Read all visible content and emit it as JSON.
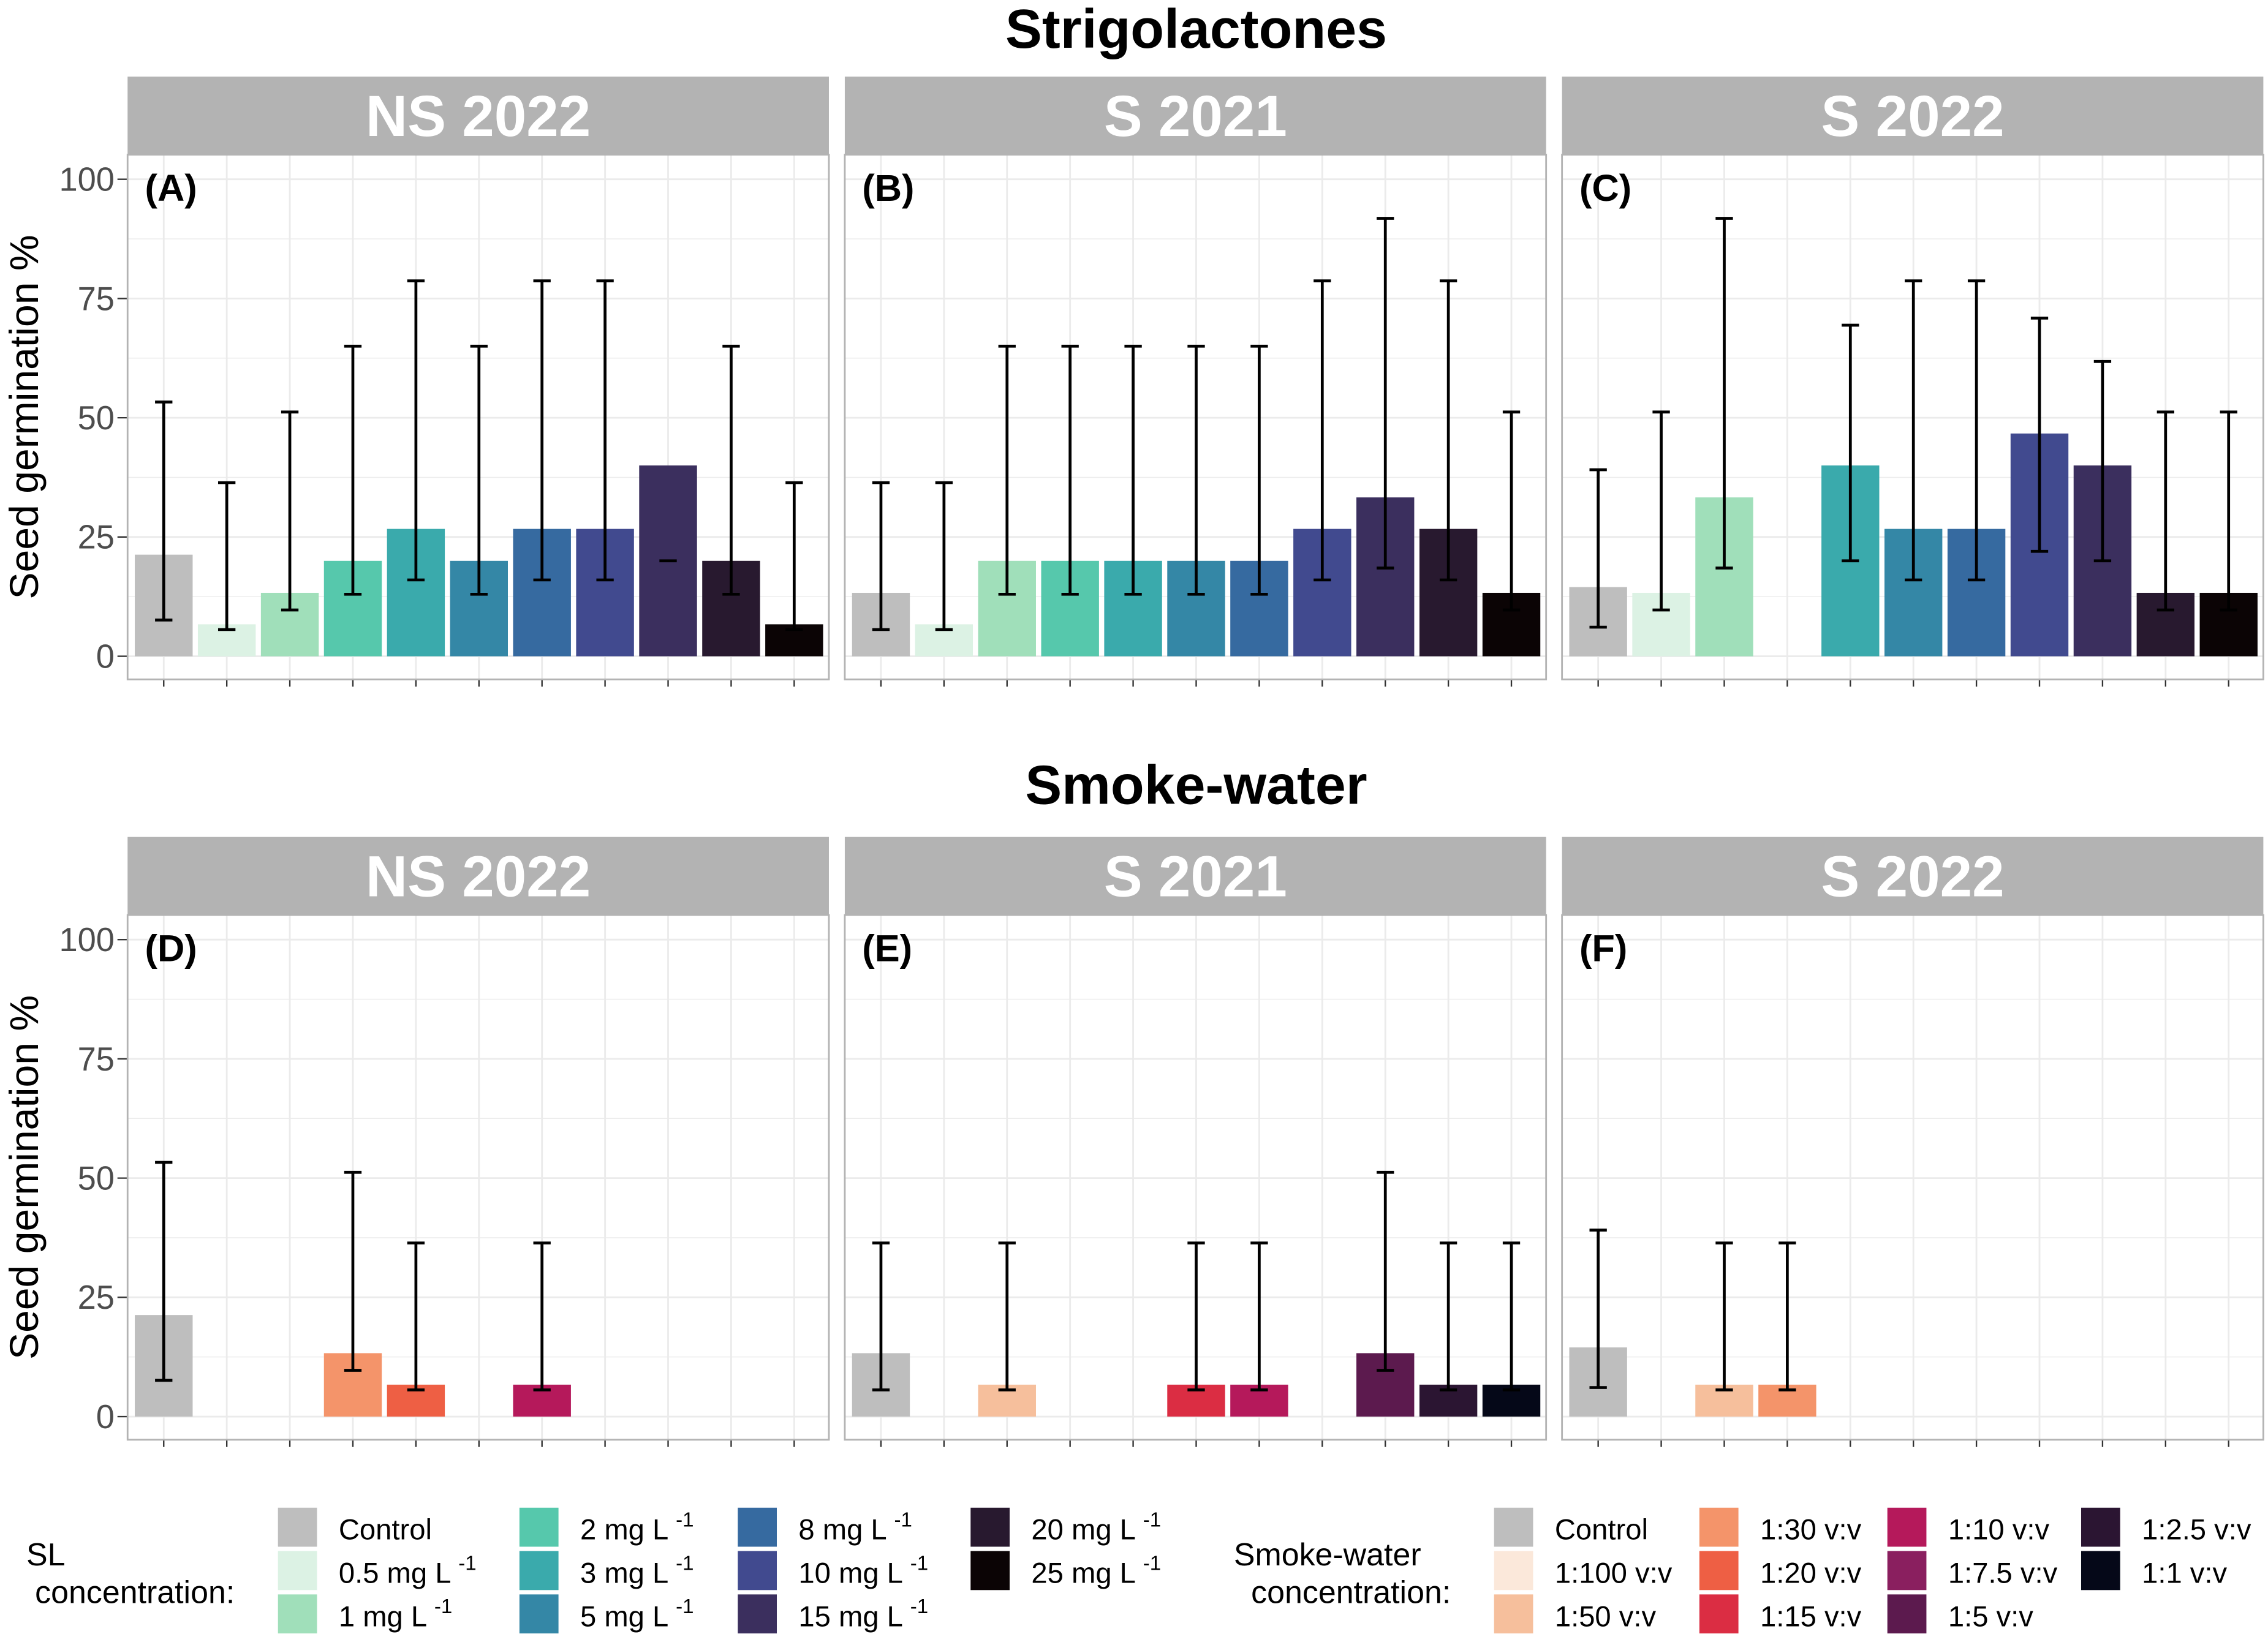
{
  "chart_data": {
    "type": "bar",
    "ylabel": "Seed germination %",
    "ylim": [
      0,
      100
    ],
    "yticks": [
      "0",
      "25",
      "50",
      "75",
      "100"
    ],
    "grid": true,
    "legend_placement": "bottom",
    "groups": [
      {
        "title": "Strigolactones",
        "legend_title": [
          "SL",
          "concentration:"
        ],
        "categories": [
          {
            "text": "Control",
            "sup": ""
          },
          {
            "text": "0.5 mg L",
            "sup": "-1"
          },
          {
            "text": "1 mg L",
            "sup": "-1"
          },
          {
            "text": "2 mg L",
            "sup": "-1"
          },
          {
            "text": "3 mg L",
            "sup": "-1"
          },
          {
            "text": "5 mg L",
            "sup": "-1"
          },
          {
            "text": "8 mg L",
            "sup": "-1"
          },
          {
            "text": "10 mg L",
            "sup": "-1"
          },
          {
            "text": "15 mg L",
            "sup": "-1"
          },
          {
            "text": "20 mg L",
            "sup": "-1"
          },
          {
            "text": "25 mg L",
            "sup": "-1"
          }
        ],
        "colors": [
          "#bebebe",
          "#dcf2e4",
          "#a0dfba",
          "#56c8ac",
          "#3aaaac",
          "#3487a6",
          "#366aa0",
          "#414a8f",
          "#3b2f5e",
          "#28192f",
          "#0b0405"
        ],
        "panels": [
          {
            "strip": "NS 2022",
            "tag": "(A)",
            "values": [
              21.3,
              6.7,
              13.3,
              20,
              26.7,
              20,
              26.7,
              26.7,
              40,
              20,
              6.7
            ],
            "ci_low": [
              7.6,
              5.6,
              9.7,
              13,
              16,
              13,
              16,
              16,
              20,
              13,
              5.6
            ],
            "ci_high": [
              53.3,
              36.4,
              51.2,
              65,
              78.7,
              65,
              78.7,
              78.7,
              null,
              65,
              36.4
            ]
          },
          {
            "strip": "S 2021",
            "tag": "(B)",
            "values": [
              13.3,
              6.7,
              20,
              20,
              20,
              20,
              20,
              26.7,
              33.3,
              26.7,
              13.3
            ],
            "ci_low": [
              5.6,
              5.6,
              13,
              13,
              13,
              13,
              13,
              16,
              18.5,
              16,
              9.7
            ],
            "ci_high": [
              36.4,
              36.4,
              65,
              65,
              65,
              65,
              65,
              78.7,
              91.8,
              78.7,
              51.2
            ]
          },
          {
            "strip": "S 2022",
            "tag": "(C)",
            "values": [
              14.5,
              13.3,
              33.3,
              null,
              40,
              26.7,
              26.7,
              46.7,
              40,
              13.3,
              13.3
            ],
            "ci_low": [
              6.1,
              9.7,
              18.5,
              null,
              20,
              16,
              16,
              22,
              20,
              9.7,
              9.7
            ],
            "ci_high": [
              39.1,
              51.2,
              91.8,
              null,
              69.4,
              78.7,
              78.7,
              70.9,
              61.8,
              51.2,
              51.2
            ]
          }
        ]
      },
      {
        "title": "Smoke-water",
        "legend_title": [
          "Smoke-water",
          "concentration:"
        ],
        "categories": [
          {
            "text": "Control",
            "sup": ""
          },
          {
            "text": "1:100 v:v",
            "sup": ""
          },
          {
            "text": "1:50 v:v",
            "sup": ""
          },
          {
            "text": "1:30 v:v",
            "sup": ""
          },
          {
            "text": "1:20 v:v",
            "sup": ""
          },
          {
            "text": "1:15 v:v",
            "sup": ""
          },
          {
            "text": "1:10 v:v",
            "sup": ""
          },
          {
            "text": "1:7.5 v:v",
            "sup": ""
          },
          {
            "text": "1:5 v:v",
            "sup": ""
          },
          {
            "text": "1:2.5 v:v",
            "sup": ""
          },
          {
            "text": "1:1 v:v",
            "sup": ""
          }
        ],
        "colors": [
          "#bebebe",
          "#fbe8da",
          "#f6bf9c",
          "#f4946a",
          "#ee5f44",
          "#db2d43",
          "#b5195b",
          "#8a1f5f",
          "#5c1a4e",
          "#2b1532",
          "#050818"
        ],
        "panels": [
          {
            "strip": "NS 2022",
            "tag": "(D)",
            "values": [
              21.3,
              null,
              null,
              13.3,
              6.7,
              null,
              6.7,
              null,
              null,
              null,
              null
            ],
            "ci_low": [
              7.6,
              null,
              null,
              9.7,
              5.6,
              null,
              5.6,
              null,
              null,
              null,
              null
            ],
            "ci_high": [
              53.3,
              null,
              null,
              51.2,
              36.4,
              null,
              36.4,
              null,
              null,
              null,
              null
            ]
          },
          {
            "strip": "S 2021",
            "tag": "(E)",
            "values": [
              13.3,
              null,
              6.7,
              null,
              null,
              6.7,
              6.7,
              null,
              13.3,
              6.7,
              6.7
            ],
            "ci_low": [
              5.6,
              null,
              5.6,
              null,
              null,
              5.6,
              5.6,
              null,
              9.7,
              5.6,
              5.6
            ],
            "ci_high": [
              36.4,
              null,
              36.4,
              null,
              null,
              36.4,
              36.4,
              null,
              51.2,
              36.4,
              36.4
            ]
          },
          {
            "strip": "S 2022",
            "tag": "(F)",
            "values": [
              14.5,
              null,
              6.7,
              6.7,
              null,
              null,
              null,
              null,
              null,
              null,
              null
            ],
            "ci_low": [
              6.1,
              null,
              5.6,
              5.6,
              null,
              null,
              null,
              null,
              null,
              null,
              null
            ],
            "ci_high": [
              39.1,
              null,
              36.4,
              36.4,
              null,
              null,
              null,
              null,
              null,
              null,
              null
            ]
          }
        ]
      }
    ]
  }
}
